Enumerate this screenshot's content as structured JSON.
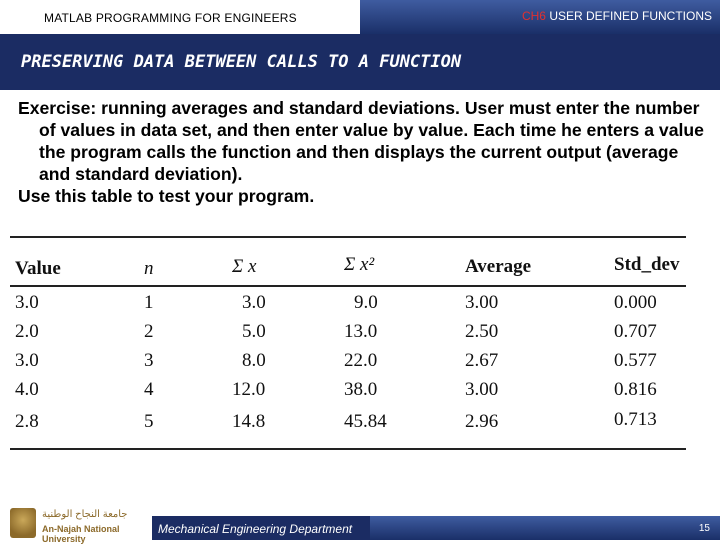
{
  "header": {
    "course": "MATLAB PROGRAMMING FOR ENGINEERS",
    "chapter_number": "CH6",
    "chapter_title": "USER DEFINED FUNCTIONS"
  },
  "title": "PRESERVING DATA BETWEEN CALLS TO A FUNCTION",
  "body": {
    "paragraph1": "Exercise: running averages and standard deviations. User must enter the number of values in data set, and then enter value by value. Each time he enters a value the program calls the function and then displays the current output (average and standard deviation).",
    "paragraph2": "Use this table to test your program."
  },
  "table": {
    "headers": {
      "value": "Value",
      "n": "n",
      "sum_x": "Σ x",
      "sum_x2": "Σ x²",
      "average": "Average",
      "std_dev": "Std_dev"
    },
    "rows": [
      [
        "3.0",
        "1",
        "3.0",
        "9.0",
        "3.00",
        "0.000"
      ],
      [
        "2.0",
        "2",
        "5.0",
        "13.0",
        "2.50",
        "0.707"
      ],
      [
        "3.0",
        "3",
        "8.0",
        "22.0",
        "2.67",
        "0.577"
      ],
      [
        "4.0",
        "4",
        "12.0",
        "38.0",
        "3.00",
        "0.816"
      ],
      [
        "2.8",
        "5",
        "14.8",
        "45.84",
        "2.96",
        "0.713"
      ]
    ]
  },
  "footer": {
    "university_arabic": "جامعة النجاح الوطنية",
    "university_english": "An-Najah National University",
    "department": "Mechanical Engineering Department",
    "page_number": "15"
  }
}
